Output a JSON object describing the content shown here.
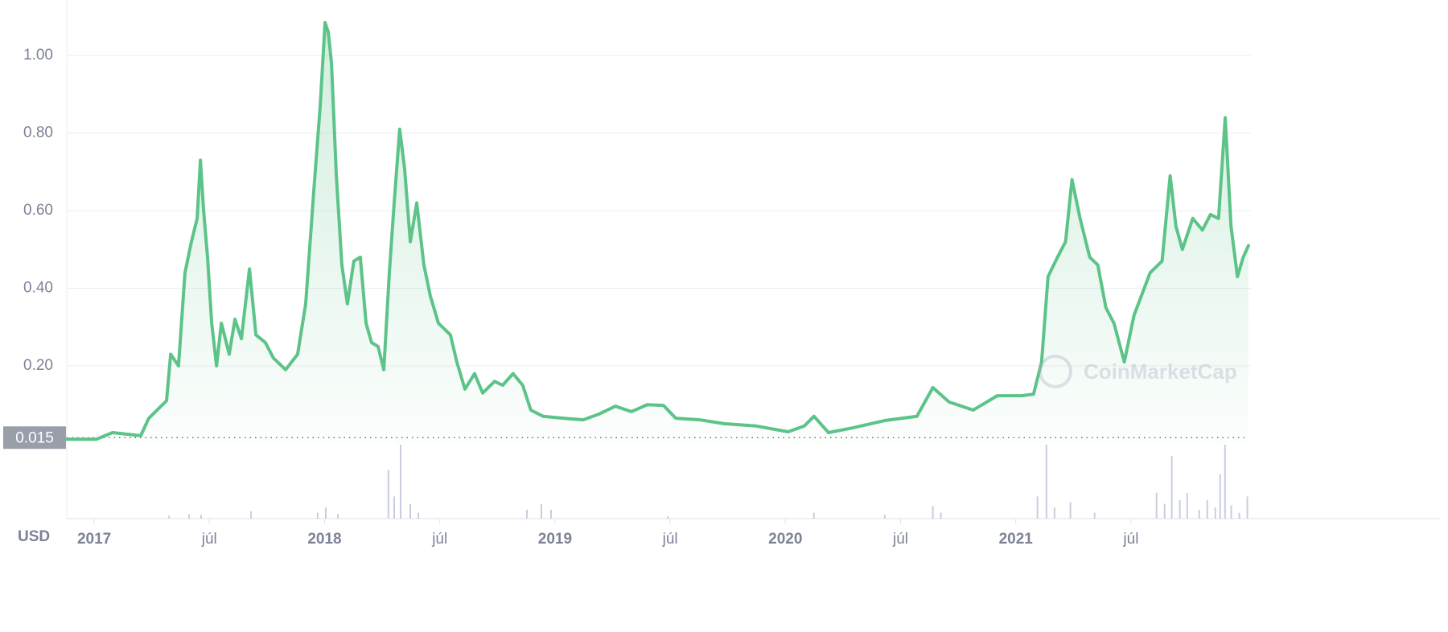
{
  "chart_data": {
    "type": "line",
    "x": [
      2016.881,
      2017.01,
      2017.08,
      2017.202,
      2017.237,
      2017.29,
      2017.314,
      2017.332,
      2017.366,
      2017.394,
      2017.422,
      2017.447,
      2017.461,
      2017.475,
      2017.492,
      2017.51,
      2017.531,
      2017.552,
      2017.586,
      2017.611,
      2017.639,
      2017.674,
      2017.702,
      2017.743,
      2017.778,
      2017.831,
      2017.883,
      2017.918,
      2017.953,
      2017.981,
      2018.002,
      2018.016,
      2018.03,
      2018.051,
      2018.075,
      2018.099,
      2018.127,
      2018.155,
      2018.18,
      2018.204,
      2018.232,
      2018.257,
      2018.281,
      2018.302,
      2018.326,
      2018.347,
      2018.372,
      2018.4,
      2018.431,
      2018.459,
      2018.494,
      2018.546,
      2018.574,
      2018.609,
      2018.651,
      2018.686,
      2018.738,
      2018.773,
      2018.818,
      2018.86,
      2018.895,
      2018.948,
      2019.035,
      2019.122,
      2019.192,
      2019.262,
      2019.332,
      2019.401,
      2019.471,
      2019.524,
      2019.628,
      2019.733,
      2019.873,
      2020.012,
      2020.082,
      2020.124,
      2020.187,
      2020.291,
      2020.431,
      2020.571,
      2020.64,
      2020.71,
      2020.815,
      2020.92,
      2021.024,
      2021.077,
      2021.112,
      2021.14,
      2021.181,
      2021.216,
      2021.244,
      2021.279,
      2021.321,
      2021.356,
      2021.391,
      2021.426,
      2021.471,
      2021.513,
      2021.583,
      2021.635,
      2021.67,
      2021.695,
      2021.723,
      2021.768,
      2021.81,
      2021.845,
      2021.88,
      2021.909,
      2021.934,
      2021.962,
      2021.987,
      2022.01
    ],
    "values": [
      0.011,
      0.011,
      0.028,
      0.02,
      0.065,
      0.096,
      0.11,
      0.23,
      0.2,
      0.44,
      0.52,
      0.58,
      0.73,
      0.6,
      0.48,
      0.31,
      0.2,
      0.31,
      0.23,
      0.32,
      0.27,
      0.45,
      0.28,
      0.26,
      0.22,
      0.19,
      0.23,
      0.36,
      0.65,
      0.87,
      1.085,
      1.06,
      0.98,
      0.69,
      0.46,
      0.36,
      0.47,
      0.48,
      0.31,
      0.26,
      0.25,
      0.19,
      0.44,
      0.62,
      0.81,
      0.71,
      0.52,
      0.62,
      0.46,
      0.38,
      0.31,
      0.28,
      0.21,
      0.14,
      0.18,
      0.13,
      0.16,
      0.15,
      0.18,
      0.15,
      0.086,
      0.07,
      0.065,
      0.061,
      0.076,
      0.096,
      0.082,
      0.1,
      0.098,
      0.065,
      0.061,
      0.051,
      0.045,
      0.03,
      0.045,
      0.07,
      0.028,
      0.04,
      0.059,
      0.07,
      0.144,
      0.107,
      0.086,
      0.123,
      0.123,
      0.127,
      0.21,
      0.43,
      0.48,
      0.52,
      0.68,
      0.58,
      0.48,
      0.46,
      0.35,
      0.31,
      0.21,
      0.33,
      0.44,
      0.47,
      0.69,
      0.56,
      0.5,
      0.58,
      0.55,
      0.59,
      0.58,
      0.84,
      0.56,
      0.43,
      0.48,
      0.51
    ],
    "color": "#5cc389",
    "xlim": [
      2016.881,
      2022.01
    ],
    "ylim": [
      0,
      1.143
    ],
    "xticks": [
      2017,
      {
        "value": 2017.5,
        "label": "júl"
      },
      2018,
      {
        "value": 2018.5,
        "label": "júl"
      },
      2019,
      {
        "value": 2019.5,
        "label": "júl"
      },
      2020,
      {
        "value": 2020.5,
        "label": "júl"
      },
      2021,
      {
        "value": 2021.5,
        "label": "júl"
      }
    ],
    "yticks": [
      {
        "value": 0.2,
        "label": "0.20"
      },
      {
        "value": 0.4,
        "label": "0.40"
      },
      {
        "value": 0.6,
        "label": "0.60"
      },
      {
        "value": 0.8,
        "label": "0.80"
      },
      {
        "value": 1.0,
        "label": "1.00"
      }
    ],
    "grid": true,
    "current_price": 0.015,
    "currency": "USD",
    "watermark": "CoinMarketCap",
    "volume": {
      "x": [
        2017.325,
        2017.412,
        2017.464,
        2017.681,
        2017.97,
        2018.005,
        2018.058,
        2018.277,
        2018.302,
        2018.33,
        2018.372,
        2018.407,
        2018.878,
        2018.941,
        2018.983,
        2019.489,
        2020.124,
        2020.431,
        2020.64,
        2020.675,
        2021.094,
        2021.133,
        2021.168,
        2021.237,
        2021.342,
        2021.611,
        2021.646,
        2021.677,
        2021.712,
        2021.744,
        2021.796,
        2021.831,
        2021.866,
        2021.887,
        2021.908,
        2021.935,
        2021.97,
        2022.005
      ],
      "values": [
        4,
        6,
        5,
        10,
        8,
        15,
        6,
        66,
        30,
        100,
        20,
        8,
        12,
        20,
        12,
        3,
        8,
        5,
        17,
        8,
        30,
        100,
        15,
        22,
        8,
        35,
        20,
        85,
        25,
        35,
        12,
        25,
        15,
        60,
        100,
        18,
        8,
        30
      ],
      "color": "#c9cde0",
      "ylim": [
        0,
        100
      ]
    }
  }
}
